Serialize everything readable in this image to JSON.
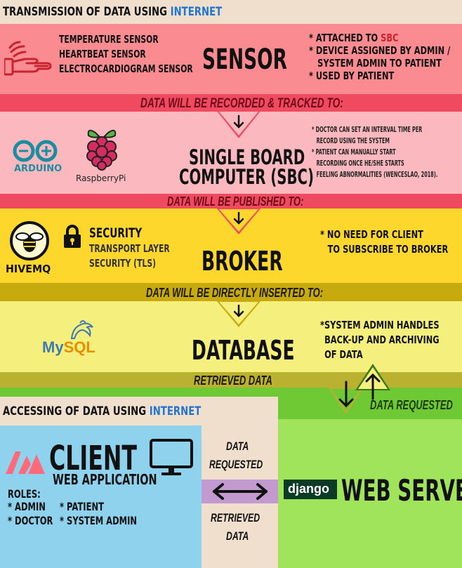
{
  "header": {
    "prefix": "TRANSMISSION OF DATA USING ",
    "highlight": "INTERNET"
  },
  "sensor": {
    "items": [
      "TEMPERATURE SENSOR",
      "HEARTBEAT SENSOR",
      "ELECTROCARDIOGRAM SENSOR"
    ],
    "title": "SENSOR",
    "notes": [
      "* ATTACHED TO ",
      "SBC",
      "* DEVICE ASSIGNED BY ADMIN /",
      "SYSTEM ADMIN TO PATIENT",
      "* USED BY PATIENT"
    ]
  },
  "band1": "DATA WILL BE RECORDED & TRACKED TO:",
  "sbc": {
    "arduino": "ARDUINO",
    "rpi": "RaspberryPi",
    "title1": "SINGLE BOARD",
    "title2": "COMPUTER (SBC)",
    "notes": [
      "* DOCTOR CAN SET AN INTERVAL TIME PER",
      "RECORD USING THE SYSTEM",
      "* PATIENT CAN MANUALLY START",
      "RECORDING ONCE HE/SHE STARTS",
      "FEELING ABNORMALITIES (WENCESLAO, 2018)."
    ]
  },
  "band2": "DATA WILL BE PUBLISHED TO:",
  "broker": {
    "hivemq": "HIVEMQ",
    "security": "SECURITY",
    "tls1": "TRANSPORT LAYER",
    "tls2": "SECURITY (TLS)",
    "title": "BROKER",
    "notes": [
      "* NO NEED FOR CLIENT",
      "TO SUBSCRIBE TO BROKER"
    ]
  },
  "band3": "DATA WILL BE DIRECTLY INSERTED TO:",
  "database": {
    "mysql1": "My",
    "mysql2": "SQL",
    "title": "DATABASE",
    "notes": [
      "*SYSTEM ADMIN HANDLES",
      "BACK-UP AND ARCHIVING",
      "OF DATA"
    ]
  },
  "band4": "RETRIEVED DATA",
  "data_requested": "DATA REQUESTED",
  "access": {
    "prefix": "ACCESSING OF DATA USING ",
    "highlight": "INTERNET"
  },
  "client": {
    "title": "CLIENT",
    "subtitle": "WEB APPLICATION",
    "roles_label": "ROLES:",
    "roles": [
      "* ADMIN",
      "* PATIENT",
      "* DOCTOR",
      "* SYSTEM ADMIN"
    ]
  },
  "exchange": {
    "top1": "DATA",
    "top2": "REQUESTED",
    "bot1": "RETRIEVED",
    "bot2": "DATA"
  },
  "webserver": {
    "django": "django",
    "title": "WEB SERVER"
  },
  "colors": {
    "sensor": "#fa8c91",
    "sbc": "#fbb9bf",
    "band_red": "#f04a60",
    "broker": "#fdd72c",
    "band_gold": "#c7aa0d",
    "database": "#f5ef7d",
    "band_olive": "#b9b12f",
    "green": "#6fc935",
    "client": "#8fd2ee",
    "light_green": "#a0e45c",
    "blue_text": "#1f75d1"
  }
}
